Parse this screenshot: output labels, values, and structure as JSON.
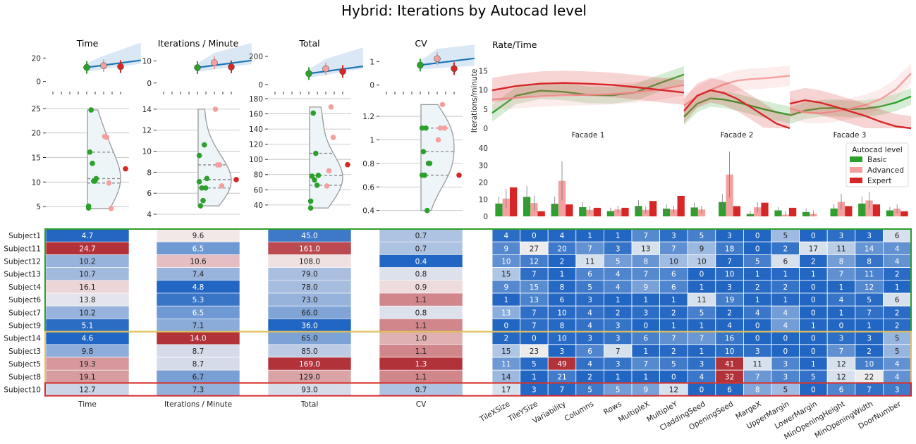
{
  "title": "Hybrid: Iterations by Autocad level",
  "colors": {
    "basic": "#2ca02c",
    "advanced": "#f4a0a0",
    "expert": "#d62728",
    "fit_line": "#1f77b4",
    "heat_low": "#2166c2",
    "heat_mid": "#f5f0f0",
    "heat_high": "#b2323a",
    "group_basic_border": "#2ca02c",
    "group_advanced_border": "#e8c060",
    "group_expert_border": "#d62728"
  },
  "chart_data": [
    {
      "type": "scatter",
      "title": "Time",
      "panel": "regression",
      "ylim": [
        -5,
        25
      ],
      "yticks": [
        0,
        20
      ],
      "points": [
        {
          "level": "Basic",
          "x": 1,
          "y": 12.0
        },
        {
          "level": "Advanced",
          "x": 2,
          "y": 13.5
        },
        {
          "level": "Expert",
          "x": 3,
          "y": 12.7
        }
      ]
    },
    {
      "type": "scatter",
      "title": "Iterations / Minute",
      "panel": "regression",
      "ylim": [
        -2,
        14
      ],
      "yticks": [
        0,
        10
      ],
      "points": [
        {
          "level": "Basic",
          "x": 1,
          "y": 7.0
        },
        {
          "level": "Advanced",
          "x": 2,
          "y": 9.2
        },
        {
          "level": "Expert",
          "x": 3,
          "y": 7.3
        }
      ]
    },
    {
      "type": "scatter",
      "title": "Total",
      "panel": "regression",
      "ylim": [
        -20,
        230
      ],
      "yticks": [
        0,
        200
      ],
      "points": [
        {
          "level": "Basic",
          "x": 1,
          "y": 78
        },
        {
          "level": "Advanced",
          "x": 2,
          "y": 112
        },
        {
          "level": "Expert",
          "x": 3,
          "y": 93
        }
      ]
    },
    {
      "type": "scatter",
      "title": "CV",
      "panel": "regression",
      "ylim": [
        -0.1,
        1.4
      ],
      "yticks": [
        0,
        1
      ],
      "points": [
        {
          "level": "Basic",
          "x": 1,
          "y": 0.85
        },
        {
          "level": "Advanced",
          "x": 2,
          "y": 1.12
        },
        {
          "level": "Expert",
          "x": 3,
          "y": 0.7
        }
      ]
    },
    {
      "type": "scatter",
      "panel": "violin",
      "metric": "Time",
      "ylim": [
        3,
        27
      ],
      "yticks": [
        5,
        10,
        15,
        20,
        25
      ],
      "basic": [
        4.7,
        24.7,
        10.2,
        10.7,
        16.1,
        13.8,
        10.2,
        5.1
      ],
      "advanced": [
        19.3,
        19.1,
        9.8,
        4.6
      ],
      "expert": [
        12.7
      ]
    },
    {
      "type": "scatter",
      "panel": "violin",
      "metric": "Iterations / Minute",
      "ylim": [
        3.8,
        15
      ],
      "yticks": [
        4,
        6,
        8,
        10,
        12,
        14
      ],
      "basic": [
        9.6,
        6.5,
        10.6,
        7.4,
        4.8,
        5.3,
        6.5,
        7.1
      ],
      "advanced": [
        14.0,
        8.7,
        8.7,
        6.7
      ],
      "expert": [
        7.3
      ]
    },
    {
      "type": "scatter",
      "panel": "violin",
      "metric": "Total",
      "ylim": [
        25,
        180
      ],
      "yticks": [
        40,
        60,
        80,
        100,
        120,
        140,
        160,
        180
      ],
      "basic": [
        45.0,
        161.0,
        108.0,
        79.0,
        78.0,
        73.0,
        66.0,
        36.0
      ],
      "advanced": [
        65.0,
        85.0,
        169.0,
        129.0
      ],
      "expert": [
        93.0
      ]
    },
    {
      "type": "scatter",
      "panel": "violin",
      "metric": "CV",
      "ylim": [
        0.35,
        1.35
      ],
      "yticks": [
        0.4,
        0.6,
        0.8,
        1.0,
        1.2
      ],
      "basic": [
        0.7,
        0.7,
        0.4,
        0.8,
        0.9,
        1.1,
        0.8,
        1.1
      ],
      "advanced": [
        1.0,
        1.1,
        1.3,
        1.1
      ],
      "expert": [
        0.7
      ]
    },
    {
      "type": "line",
      "title": "Rate/Time",
      "ylabel": "Iterations/minute",
      "ylim": [
        0,
        18
      ],
      "yticks": [
        0,
        5,
        10,
        15
      ],
      "facets": [
        "Facade 1",
        "Facade 2",
        "Facade 3"
      ],
      "series": [
        {
          "level": "Basic",
          "facade1": [
            4,
            8.5,
            9.8,
            9.5,
            8.7,
            8.6,
            9.4,
            11.8,
            14
          ],
          "facade2": [
            3,
            6.4,
            7.8,
            7.5,
            6.8,
            5.9,
            5.0,
            4.2,
            3.5
          ],
          "facade3": [
            3.3,
            4.6,
            5.2,
            5.3,
            5.0,
            5.1,
            5.7,
            6.7,
            8.3
          ]
        },
        {
          "level": "Advanced",
          "facade1": [
            7.5,
            7.9,
            8.3,
            8.6,
            8.7,
            8.9,
            9.4,
            10.1,
            11.3
          ],
          "facade2": [
            5.9,
            8.3,
            10.0,
            11.4,
            12.4,
            12.8,
            13.0,
            13.3,
            13.7
          ],
          "facade3": [
            5.2,
            4.1,
            3.9,
            4.4,
            5.1,
            6.1,
            7.6,
            10.2,
            14.3
          ]
        },
        {
          "level": "Expert",
          "facade1": [
            9.9,
            11.0,
            11.6,
            11.8,
            11.6,
            11.3,
            10.7,
            10.0,
            9.3
          ],
          "facade2": [
            4.5,
            8.5,
            9.9,
            9.2,
            7.7,
            5.6,
            3.4,
            1.2,
            0
          ],
          "facade3": [
            6.4,
            7.3,
            6.7,
            5.6,
            4.4,
            3.2,
            1.7,
            0.5,
            0
          ]
        }
      ]
    },
    {
      "type": "bar",
      "ylim": [
        0,
        45
      ],
      "yticks": [
        0,
        10,
        20,
        30,
        40
      ],
      "categories": [
        "TileXSize",
        "TileYSize",
        "Variability",
        "Columns",
        "Rows",
        "MultipleX",
        "MultipleY",
        "CladdingSeed",
        "OpeningSeed",
        "MargeX",
        "UpperMargin",
        "LowerMargin",
        "MinOpeningHeight",
        "MinOpeningWidth",
        "DoorNumber"
      ],
      "legend": {
        "title": "Autocad level",
        "entries": [
          "Basic",
          "Advanced",
          "Expert"
        ],
        "placement": "right"
      },
      "series": [
        {
          "name": "Basic",
          "values": [
            7.5,
            11.4,
            7.4,
            5.4,
            3.1,
            6.1,
            4.5,
            5.2,
            8.4,
            1.4,
            3.5,
            2.5,
            4.6,
            7.5,
            3.5
          ]
        },
        {
          "name": "Advanced",
          "values": [
            10.4,
            7.8,
            20.8,
            3.8,
            4.0,
            3.8,
            4.0,
            4.0,
            24.5,
            5.3,
            1.0,
            1.5,
            8.5,
            9.3,
            4.5
          ]
        },
        {
          "name": "Expert",
          "values": [
            17,
            3,
            7,
            5,
            5,
            9,
            12,
            0,
            6,
            8,
            5,
            0,
            6,
            7,
            3
          ]
        }
      ]
    },
    {
      "type": "heatmap",
      "subjects": [
        "Subject1",
        "Subject11",
        "Subject12",
        "Subject13",
        "Subject4",
        "Subject6",
        "Subject7",
        "Subject9",
        "Subject14",
        "Subject3",
        "Subject5",
        "Subject8",
        "Subject10"
      ],
      "groups": [
        {
          "level": "Basic",
          "rows": 8
        },
        {
          "level": "Advanced",
          "rows": 4
        },
        {
          "level": "Expert",
          "rows": 1
        }
      ],
      "metric_columns": [
        "Time",
        "Iterations / Minute",
        "Total",
        "CV"
      ],
      "metric_values": [
        [
          "4.7",
          "9.6",
          "45.0",
          "0.7"
        ],
        [
          "24.7",
          "6.5",
          "161.0",
          "0.7"
        ],
        [
          "10.2",
          "10.6",
          "108.0",
          "0.4"
        ],
        [
          "10.7",
          "7.4",
          "79.0",
          "0.8"
        ],
        [
          "16.1",
          "4.8",
          "78.0",
          "0.9"
        ],
        [
          "13.8",
          "5.3",
          "73.0",
          "1.1"
        ],
        [
          "10.2",
          "6.5",
          "66.0",
          "0.8"
        ],
        [
          "5.1",
          "7.1",
          "36.0",
          "1.1"
        ],
        [
          "4.6",
          "14.0",
          "65.0",
          "1.0"
        ],
        [
          "9.8",
          "8.7",
          "85.0",
          "1.1"
        ],
        [
          "19.3",
          "8.7",
          "169.0",
          "1.3"
        ],
        [
          "19.1",
          "6.7",
          "129.0",
          "1.1"
        ],
        [
          "12.7",
          "7.3",
          "93.0",
          "0.7"
        ]
      ],
      "param_values": [
        [
          4,
          0,
          4,
          1,
          1,
          7,
          3,
          5,
          3,
          0,
          5,
          0,
          3,
          3,
          6
        ],
        [
          9,
          27,
          20,
          7,
          3,
          13,
          7,
          9,
          18,
          0,
          2,
          17,
          11,
          14,
          4
        ],
        [
          10,
          12,
          2,
          11,
          5,
          8,
          10,
          10,
          7,
          5,
          6,
          2,
          8,
          8,
          4
        ],
        [
          15,
          7,
          1,
          6,
          4,
          7,
          6,
          0,
          10,
          1,
          1,
          1,
          7,
          11,
          2
        ],
        [
          9,
          15,
          8,
          5,
          4,
          9,
          6,
          1,
          3,
          2,
          2,
          0,
          1,
          12,
          1
        ],
        [
          1,
          13,
          6,
          3,
          1,
          1,
          1,
          11,
          19,
          1,
          1,
          0,
          4,
          5,
          6
        ],
        [
          13,
          7,
          10,
          4,
          2,
          3,
          2,
          5,
          2,
          4,
          4,
          0,
          1,
          7,
          2
        ],
        [
          0,
          7,
          8,
          4,
          3,
          0,
          1,
          1,
          4,
          0,
          4,
          1,
          0,
          1,
          2
        ],
        [
          2,
          0,
          10,
          3,
          3,
          6,
          7,
          7,
          16,
          0,
          0,
          0,
          3,
          3,
          5
        ],
        [
          15,
          23,
          3,
          6,
          7,
          1,
          2,
          1,
          10,
          3,
          0,
          0,
          7,
          2,
          5
        ],
        [
          11,
          5,
          49,
          4,
          3,
          7,
          5,
          3,
          41,
          11,
          3,
          1,
          12,
          10,
          4
        ],
        [
          14,
          1,
          21,
          2,
          1,
          1,
          0,
          4,
          32,
          7,
          3,
          5,
          12,
          22,
          4
        ],
        [
          17,
          3,
          7,
          5,
          5,
          9,
          12,
          0,
          6,
          8,
          5,
          0,
          6,
          7,
          3
        ]
      ]
    }
  ]
}
